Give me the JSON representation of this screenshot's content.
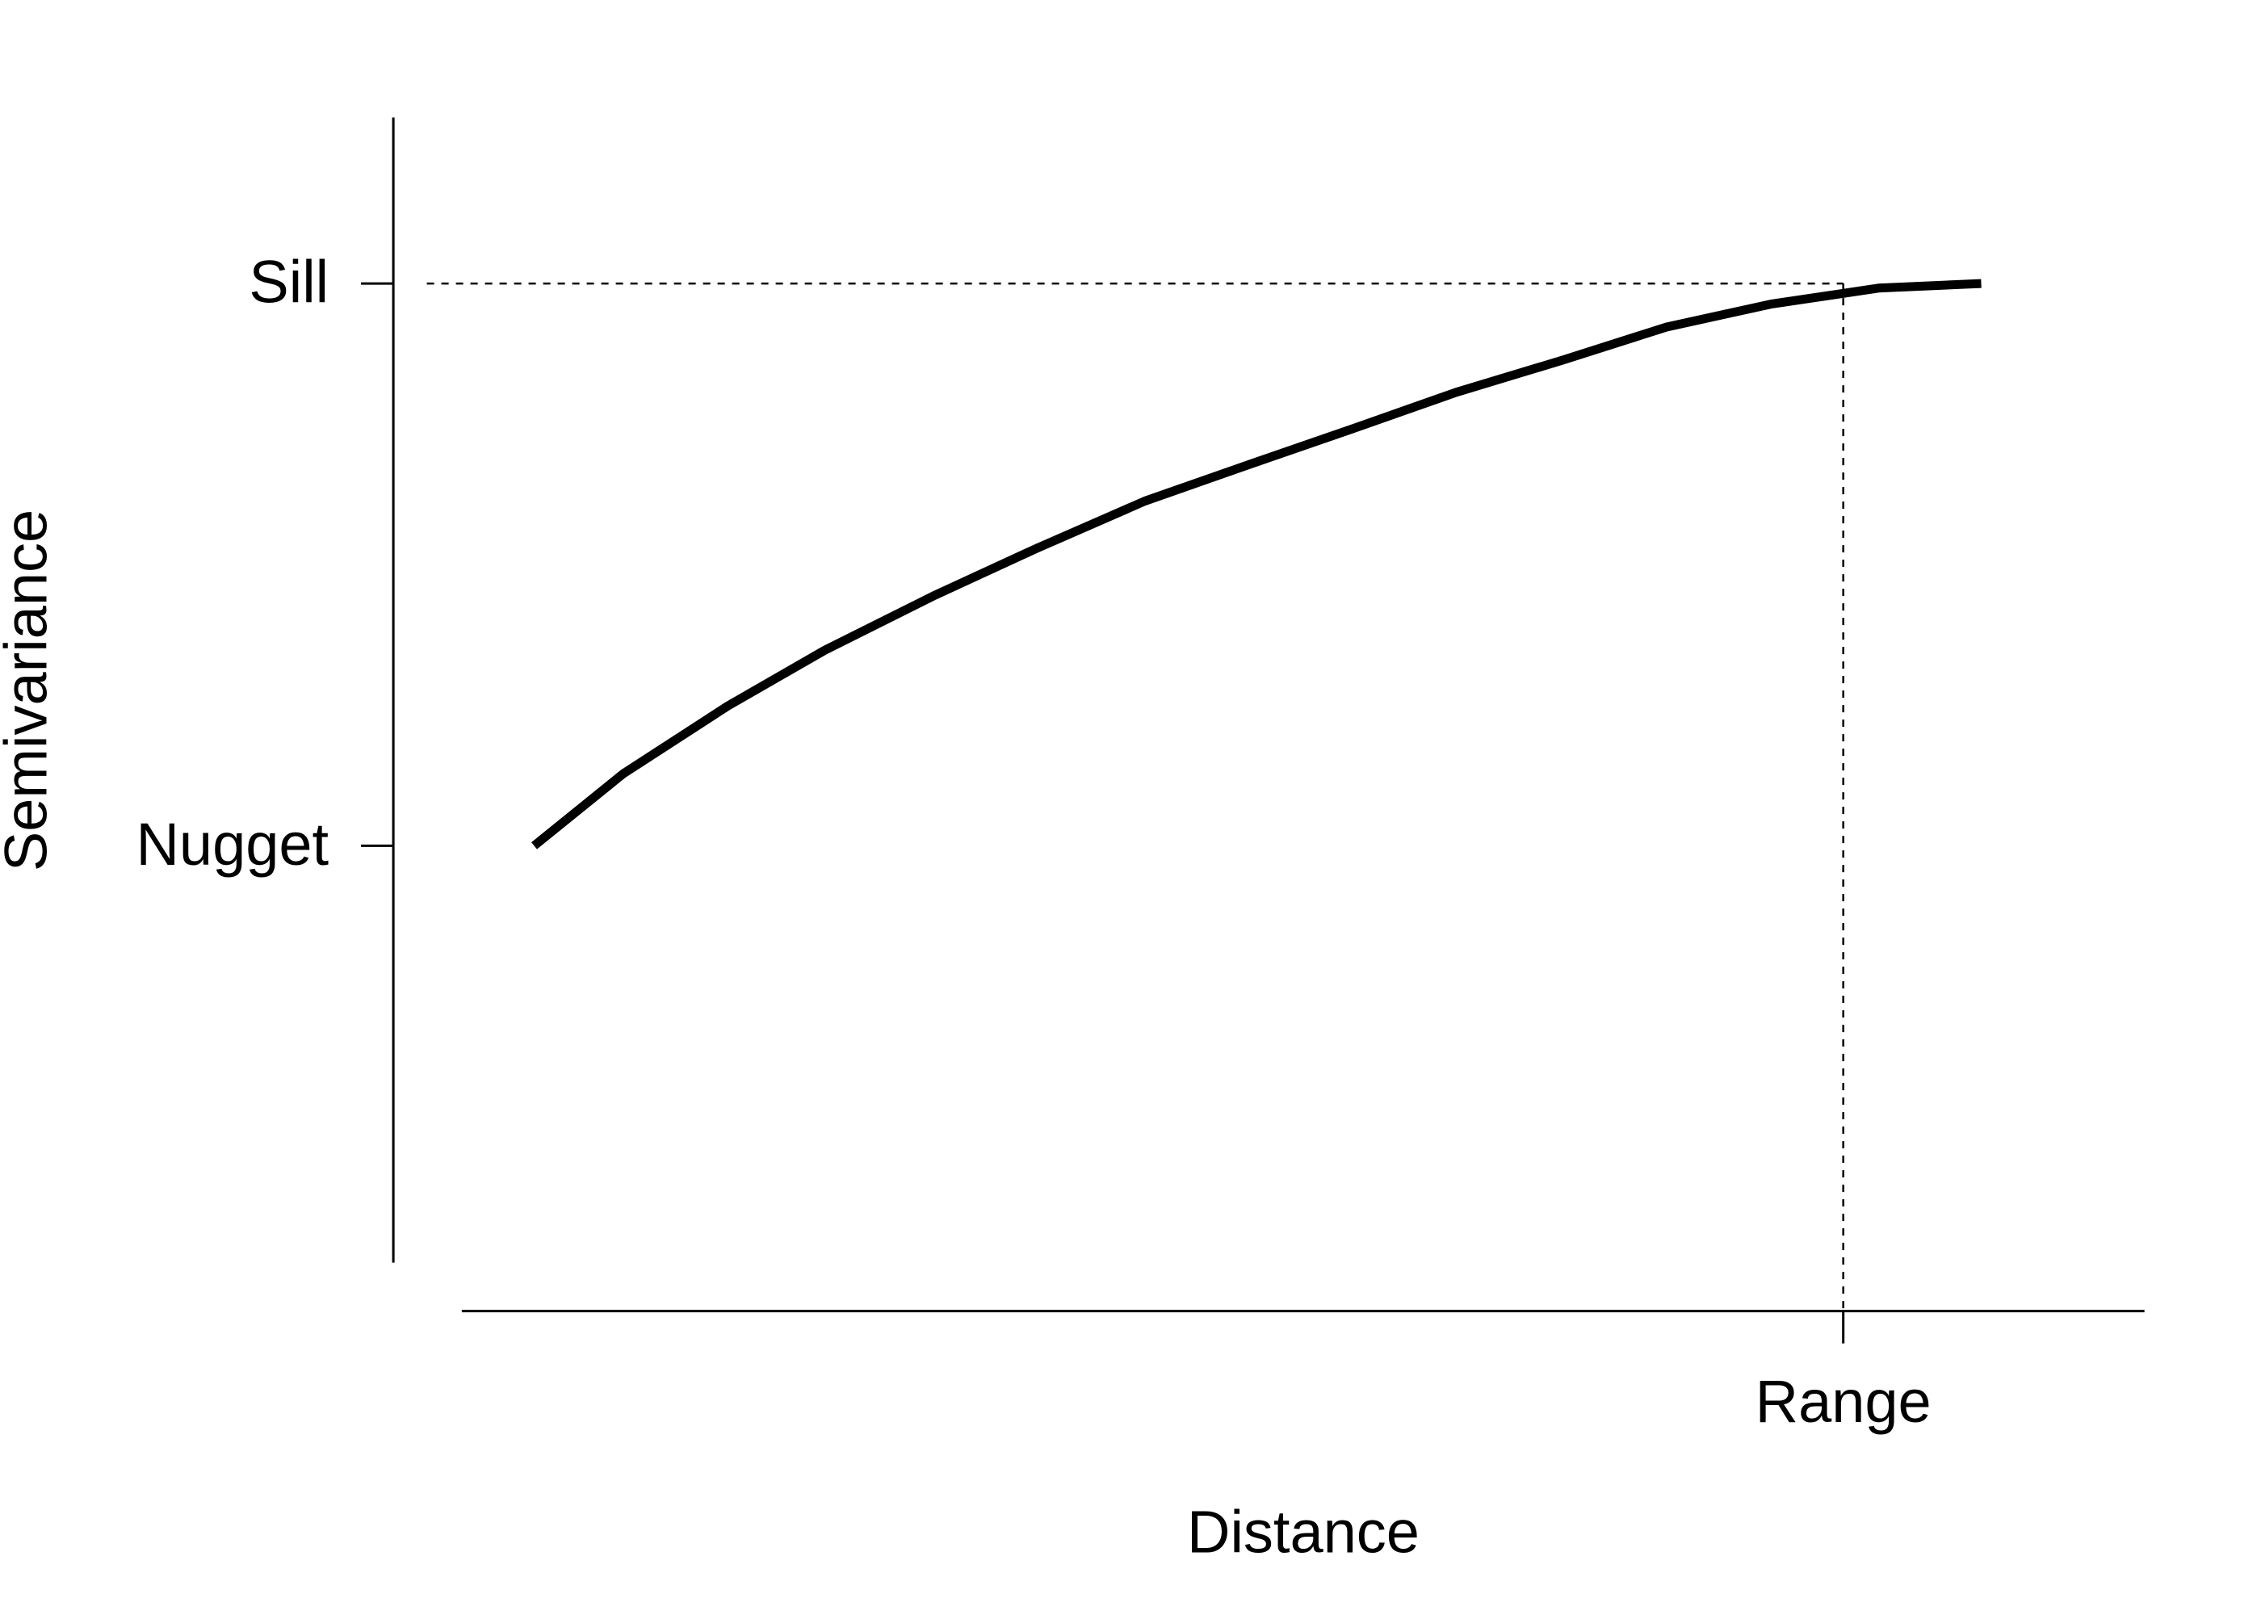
{
  "chart_data": {
    "type": "line",
    "xlabel": "Distance",
    "ylabel": "Semivariance",
    "x": [
      4.3,
      9.6,
      15.8,
      21.6,
      28.0,
      34.2,
      40.6,
      46.8,
      53.1,
      59.1,
      65.4,
      71.6,
      77.8,
      84.2,
      90.3
    ],
    "values": [
      36.4,
      42.7,
      48.6,
      53.5,
      58.2,
      62.4,
      66.5,
      69.7,
      72.9,
      76.0,
      78.8,
      81.7,
      83.7,
      85.1,
      85.5
    ],
    "color": "#000000",
    "xlim": [
      0,
      100
    ],
    "ylim": [
      0,
      100
    ],
    "xticks": [
      {
        "value": 82.1,
        "label": "Range"
      }
    ],
    "yticks": [
      {
        "value": 36.4,
        "label": "Nugget"
      },
      {
        "value": 85.5,
        "label": "Sill"
      }
    ],
    "reference_lines": true,
    "grid": false
  }
}
